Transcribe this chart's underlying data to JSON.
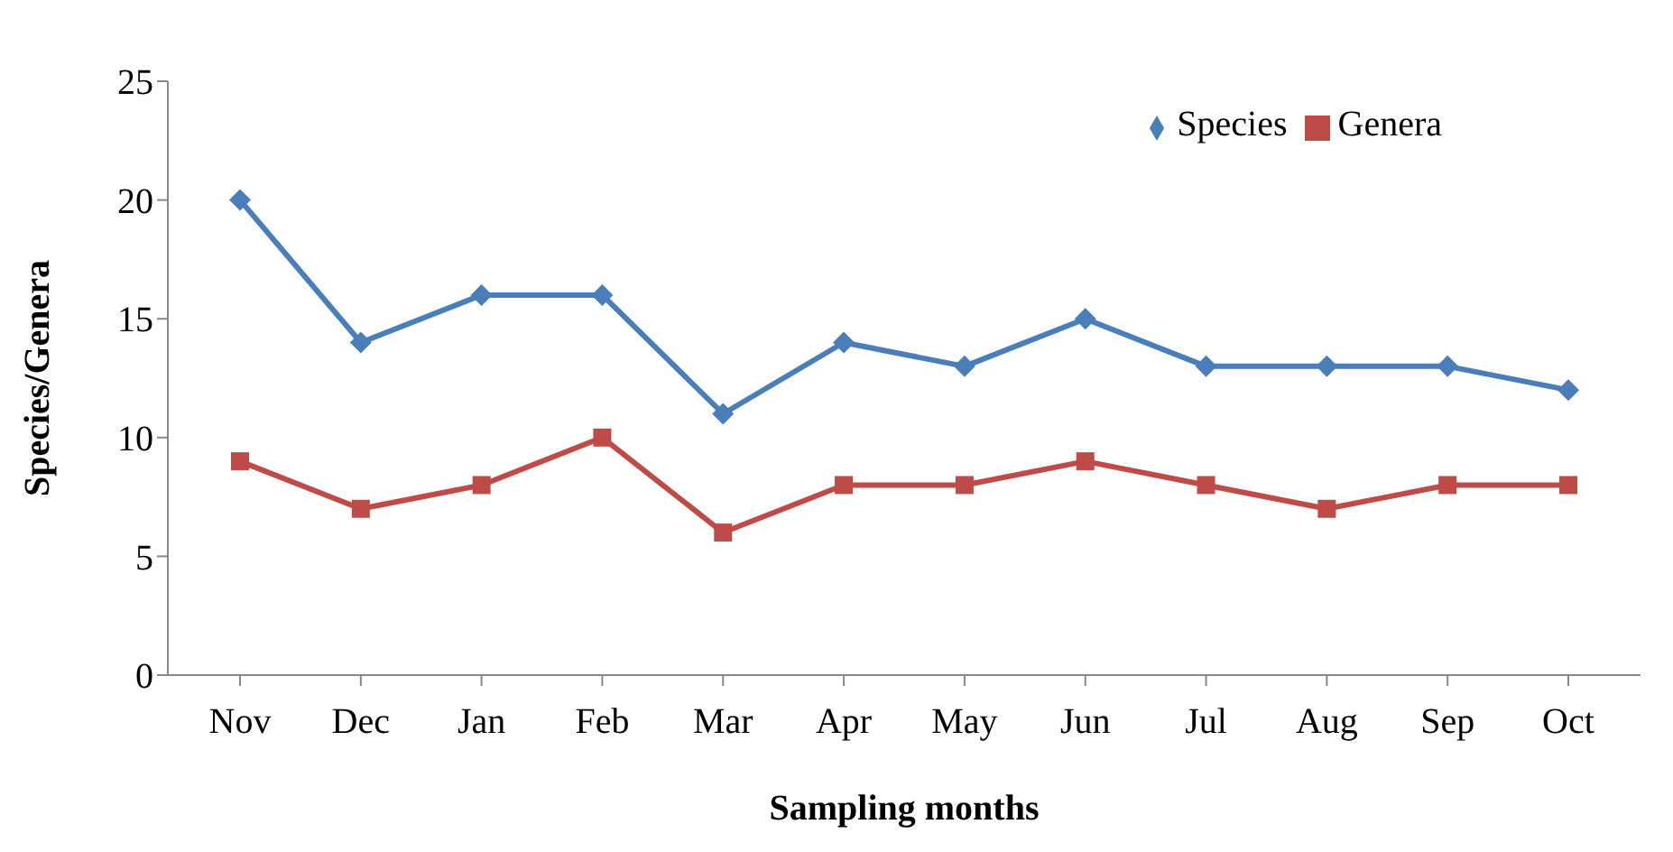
{
  "chart_data": {
    "type": "line",
    "xlabel": "Sampling months",
    "ylabel": "Species/Genera",
    "categories": [
      "Nov",
      "Dec",
      "Jan",
      "Feb",
      "Mar",
      "Apr",
      "May",
      "Jun",
      "Jul",
      "Aug",
      "Sep",
      "Oct"
    ],
    "series": [
      {
        "name": "Species",
        "color": "#4a7ebb",
        "marker": "diamond",
        "values": [
          20,
          14,
          16,
          16,
          11,
          14,
          13,
          15,
          13,
          13,
          13,
          12
        ]
      },
      {
        "name": "Genera",
        "color": "#be4b48",
        "marker": "square",
        "values": [
          9,
          7,
          8,
          10,
          6,
          8,
          8,
          9,
          8,
          7,
          8,
          8
        ]
      }
    ],
    "ylim": [
      0,
      25
    ],
    "yticks": [
      0,
      5,
      10,
      15,
      20,
      25
    ],
    "grid": false,
    "legend": "top right",
    "line_style": "solid"
  }
}
